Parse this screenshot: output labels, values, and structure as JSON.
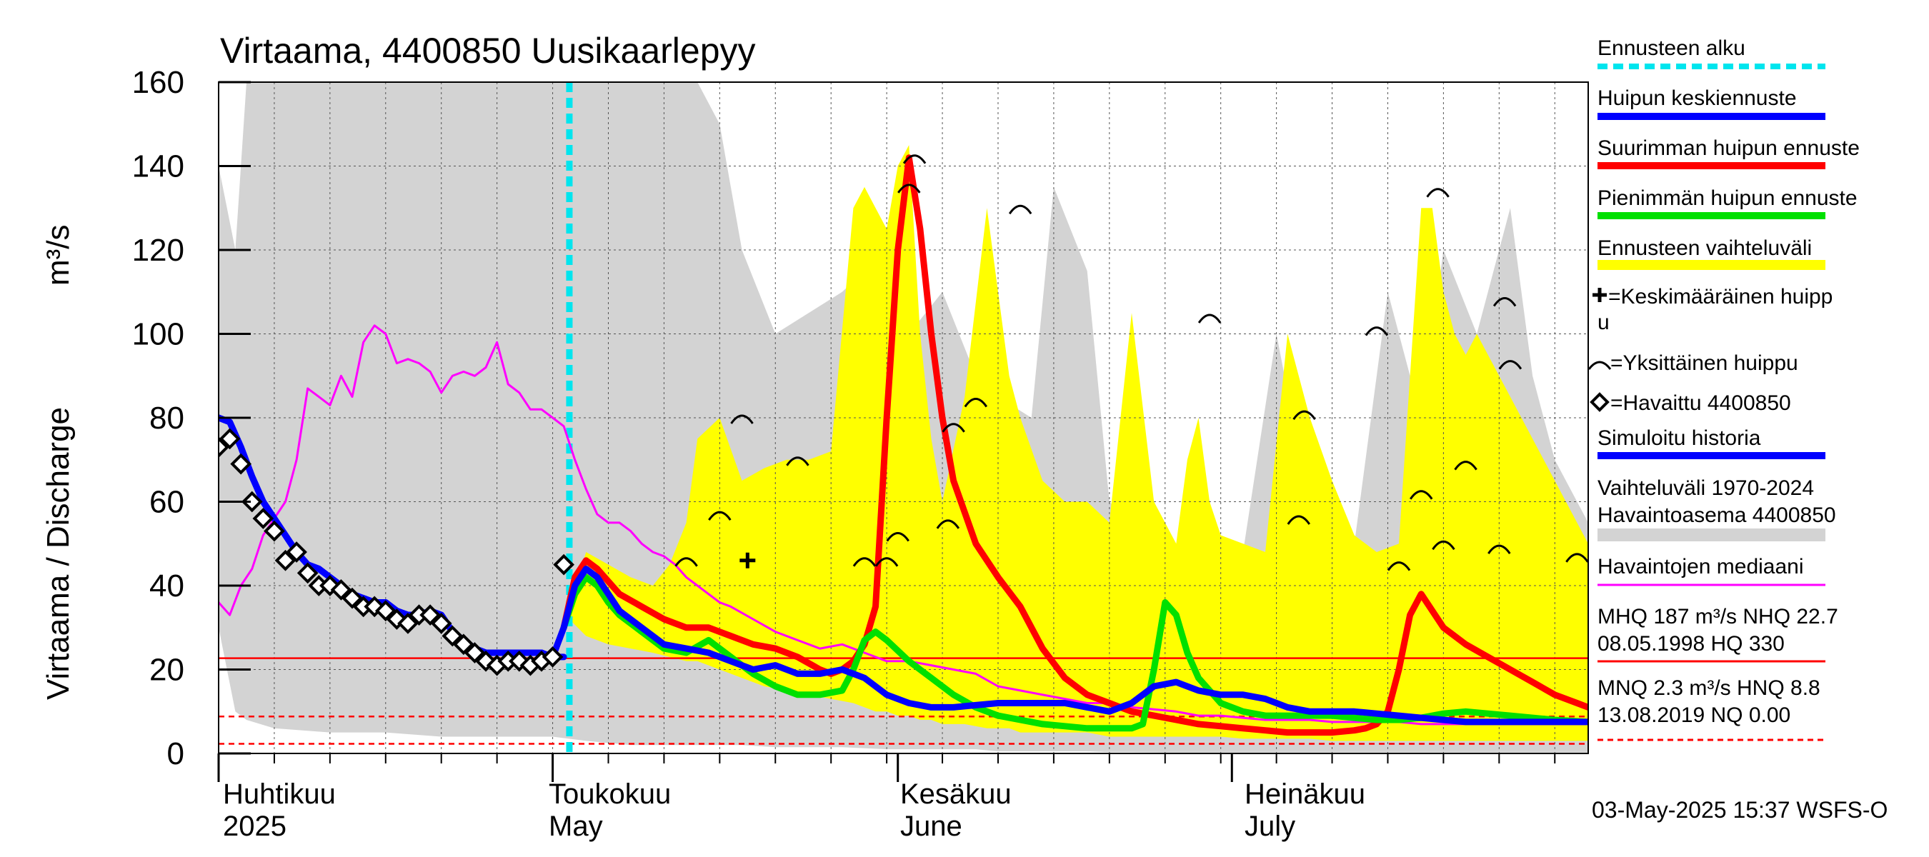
{
  "title": "Virtaama, 4400850 Uusikaarlepyy",
  "y_axis_label": "Virtaama / Discharge",
  "y_axis_unit": "m³/s",
  "timestamp": "03-May-2025 15:37 WSFS-O",
  "months": [
    {
      "fi": "Huhtikuu",
      "en": "2025"
    },
    {
      "fi": "Toukokuu",
      "en": "May"
    },
    {
      "fi": "Kesäkuu",
      "en": "June"
    },
    {
      "fi": "Heinäkuu",
      "en": "July"
    }
  ],
  "legend": {
    "forecast_start": "Ennusteen alku",
    "mean_peak": "Huipun keskiennuste",
    "max_peak": "Suurimman huipun ennuste",
    "min_peak": "Pienimmän huipun ennuste",
    "range": "Ennusteen vaihteluväli",
    "avg_peak_1": "=Keskimääräinen huipp",
    "avg_peak_2": "u",
    "single_peak": "=Yksittäinen huippu",
    "observed": "=Havaittu 4400850",
    "simulated": "Simuloitu historia",
    "hist_range_1": "Vaihteluväli 1970-2024",
    "hist_range_2": " Havaintoasema 4400850",
    "median": "Havaintojen mediaani",
    "mhq_1": "MHQ  187 m³/s NHQ 22.7",
    "mhq_2": "08.05.1998 HQ  330",
    "mnq_1": "MNQ  2.3 m³/s HNQ  8.8",
    "mnq_2": "13.08.2019 NQ 0.00"
  },
  "colors": {
    "forecast_start": "#00e5ee",
    "mean": "#0000ff",
    "max": "#ff0000",
    "min": "#00e000",
    "range": "#ffff00",
    "hist": "#d3d3d3",
    "median": "#ff00ff",
    "ref_line": "#ff0000"
  },
  "chart_data": {
    "type": "line",
    "title": "Virtaama, 4400850 Uusikaarlepyy",
    "xlabel": "",
    "ylabel": "Virtaama / Discharge m³/s",
    "x_unit": "days since 2025-03-31",
    "xlim": [
      0,
      123
    ],
    "ylim": [
      0,
      160
    ],
    "yticks": [
      0,
      20,
      40,
      60,
      80,
      100,
      120,
      140,
      160
    ],
    "forecast_start_x": 31.5,
    "reference_lines": [
      {
        "label": "NHQ 22.7",
        "y": 22.7,
        "style": "solid"
      },
      {
        "label": "HNQ 8.8",
        "y": 8.8,
        "style": "dashed"
      },
      {
        "label": "MNQ 2.3",
        "y": 2.3,
        "style": "dashed"
      }
    ],
    "history_range": {
      "name": "Vaihteluväli 1970-2024 Havaintoasema 4400850",
      "x": [
        0,
        1.5,
        2.5,
        5,
        10,
        15,
        20,
        25,
        30,
        33,
        37,
        40,
        43,
        45,
        47,
        50,
        53,
        56,
        60,
        62,
        65,
        68,
        70,
        73,
        75,
        78,
        80,
        82,
        85,
        88,
        92,
        95,
        99,
        102,
        105,
        108,
        110,
        113,
        116,
        118,
        120,
        123
      ],
      "upper": [
        140,
        120,
        160,
        160,
        160,
        160,
        160,
        160,
        160,
        160,
        160,
        160,
        160,
        150,
        120,
        100,
        105,
        110,
        120,
        100,
        110,
        90,
        85,
        80,
        135,
        115,
        60,
        55,
        48,
        45,
        48,
        100,
        45,
        50,
        110,
        80,
        120,
        100,
        130,
        90,
        70,
        55
      ],
      "lower": [
        30,
        10,
        8,
        6,
        5,
        5,
        4,
        4,
        4,
        3,
        2,
        2,
        2,
        2,
        2,
        1.5,
        1.5,
        1.5,
        1,
        1,
        1,
        1,
        0.5,
        0.5,
        0.5,
        0.5,
        0.3,
        0.3,
        0.2,
        0.2,
        0.2,
        0.2,
        0.2,
        0.2,
        0.2,
        0.2,
        0.2,
        0.2,
        0.2,
        0.2,
        0.2,
        0.2
      ]
    },
    "forecast_range": {
      "name": "Ennusteen vaihteluväli",
      "x": [
        31.5,
        33,
        35,
        37,
        39,
        40.5,
        42,
        43,
        45,
        47,
        49,
        51,
        53,
        55,
        57,
        58,
        59,
        60,
        61,
        62,
        63,
        64,
        65,
        67,
        69,
        71,
        72,
        74,
        76,
        78,
        80,
        82,
        84,
        86,
        87,
        88,
        89,
        90,
        92,
        94,
        96,
        98,
        100,
        102,
        104,
        106,
        108,
        109,
        110,
        111,
        112,
        113,
        115,
        117,
        119,
        121,
        123
      ],
      "upper": [
        35,
        48,
        45,
        42,
        40,
        45,
        55,
        75,
        80,
        65,
        68,
        70,
        70,
        72,
        130,
        135,
        130,
        125,
        140,
        145,
        100,
        75,
        60,
        85,
        130,
        90,
        80,
        65,
        60,
        60,
        55,
        105,
        60,
        50,
        70,
        80,
        60,
        52,
        50,
        48,
        100,
        80,
        65,
        52,
        48,
        50,
        130,
        130,
        110,
        100,
        95,
        100,
        90,
        80,
        70,
        60,
        50
      ],
      "lower": [
        32,
        28,
        26,
        25,
        24,
        23,
        22,
        22,
        20,
        18,
        16,
        15,
        14,
        13,
        12,
        11,
        10,
        10,
        9,
        9,
        8,
        8,
        7,
        7,
        6,
        6,
        5,
        5,
        5,
        5,
        4,
        4,
        4,
        4,
        4,
        4,
        4,
        4,
        3.5,
        3.5,
        3.5,
        3.5,
        3,
        3,
        3,
        3,
        3,
        3,
        3,
        3,
        3,
        3,
        3,
        3,
        3,
        3,
        3
      ]
    },
    "series": [
      {
        "name": "Havaintojen mediaani",
        "x": [
          0,
          1,
          2,
          3,
          4,
          5,
          6,
          7,
          8,
          9,
          10,
          11,
          12,
          13,
          14,
          15,
          16,
          17,
          18,
          19,
          20,
          21,
          22,
          23,
          24,
          25,
          26,
          27,
          28,
          29,
          30,
          31,
          32,
          33,
          34,
          35,
          36,
          37,
          38,
          39,
          40,
          41,
          42,
          43,
          44,
          45,
          46,
          48,
          50,
          52,
          54,
          56,
          58,
          60,
          62,
          64,
          66,
          68,
          70,
          72,
          74,
          76,
          78,
          80,
          82,
          84,
          86,
          88,
          90,
          92,
          94,
          96,
          98,
          100,
          102,
          104,
          106,
          108,
          110,
          112,
          114,
          116,
          118,
          120,
          123
        ],
        "values": [
          36,
          33,
          40,
          44,
          52,
          56,
          60,
          70,
          87,
          85,
          83,
          90,
          85,
          98,
          102,
          100,
          93,
          94,
          93,
          91,
          86,
          90,
          91,
          90,
          92,
          98,
          88,
          86,
          82,
          82,
          80,
          78,
          70,
          63,
          57,
          55,
          55,
          53,
          50,
          48,
          47,
          45,
          42,
          40,
          38,
          36,
          35,
          32,
          29,
          27,
          25,
          26,
          24,
          22,
          22,
          21,
          20,
          19,
          16,
          15,
          14,
          13,
          12,
          12,
          11,
          10.5,
          10,
          9,
          9,
          8.5,
          8,
          8,
          8,
          7.5,
          7.5,
          7.5,
          7.5,
          7,
          7,
          7,
          7,
          7,
          7,
          7,
          7
        ]
      },
      {
        "name": "Simuloitu historia",
        "x": [
          0,
          1,
          2,
          3,
          4,
          5,
          6,
          7,
          8,
          9,
          10,
          11,
          12,
          13,
          14,
          15,
          16,
          17,
          18,
          19,
          20,
          21,
          22,
          23,
          24,
          25,
          26,
          27,
          28,
          29,
          30,
          31
        ],
        "values": [
          80,
          79,
          73,
          66,
          60,
          56,
          52,
          48,
          45,
          44,
          42,
          40,
          38,
          37,
          36,
          36,
          34,
          33,
          33,
          34,
          33,
          29,
          27,
          25,
          24,
          24,
          24,
          24,
          24,
          24,
          23,
          23
        ]
      },
      {
        "name": "Suurimman huipun ennuste",
        "x": [
          31,
          32,
          33,
          34,
          35,
          36,
          38,
          40,
          42,
          44,
          46,
          48,
          50,
          52,
          54,
          55,
          56,
          57,
          58,
          59,
          60,
          61,
          62,
          63,
          64,
          65,
          66,
          68,
          70,
          72,
          74,
          76,
          78,
          80,
          82,
          84,
          86,
          88,
          90,
          92,
          94,
          96,
          98,
          100,
          102,
          103,
          104,
          105,
          106,
          107,
          108,
          110,
          112,
          114,
          116,
          118,
          120,
          122,
          123
        ],
        "values": [
          30,
          42,
          46,
          44,
          41,
          38,
          35,
          32,
          30,
          30,
          28,
          26,
          25,
          23,
          20,
          19,
          20,
          22,
          26,
          35,
          80,
          120,
          142,
          125,
          100,
          80,
          65,
          50,
          42,
          35,
          25,
          18,
          14,
          12,
          10,
          9,
          8,
          7,
          6.5,
          6,
          5.5,
          5,
          5,
          5,
          5.5,
          6,
          7,
          10,
          20,
          33,
          38,
          30,
          26,
          23,
          20,
          17,
          14,
          12,
          11
        ]
      },
      {
        "name": "Pienimmän huipun ennuste",
        "x": [
          31,
          32,
          33,
          34,
          35,
          36,
          38,
          40,
          42,
          44,
          46,
          48,
          50,
          52,
          54,
          56,
          57,
          58,
          59,
          60,
          62,
          64,
          66,
          68,
          70,
          72,
          74,
          76,
          78,
          80,
          82,
          83,
          84,
          85,
          86,
          87,
          88,
          90,
          92,
          94,
          96,
          98,
          100,
          102,
          104,
          106,
          108,
          110,
          112,
          114,
          116,
          118,
          120,
          123
        ],
        "values": [
          30,
          38,
          42,
          40,
          36,
          33,
          29,
          25,
          24,
          27,
          23,
          19,
          16,
          14,
          14,
          15,
          20,
          27,
          29,
          27,
          22,
          18,
          14,
          11,
          9,
          8,
          7,
          6.5,
          6,
          6,
          6,
          7,
          20,
          36,
          33,
          24,
          18,
          12,
          10,
          9,
          9,
          9,
          9,
          8.5,
          8,
          8,
          8.5,
          9.5,
          10,
          9.5,
          9,
          8.5,
          8,
          7.5
        ]
      },
      {
        "name": "Huipun keskiennuste",
        "x": [
          0,
          1,
          2,
          3,
          4,
          5,
          6,
          7,
          8,
          9,
          10,
          11,
          12,
          13,
          14,
          15,
          16,
          17,
          18,
          19,
          20,
          21,
          22,
          23,
          24,
          25,
          26,
          27,
          28,
          29,
          30,
          31,
          32,
          33,
          34,
          35,
          36,
          38,
          40,
          42,
          44,
          46,
          48,
          50,
          52,
          54,
          56,
          58,
          60,
          62,
          64,
          66,
          68,
          70,
          72,
          74,
          76,
          78,
          80,
          82,
          84,
          86,
          88,
          90,
          92,
          94,
          96,
          98,
          100,
          102,
          104,
          106,
          108,
          110,
          112,
          114,
          116,
          118,
          120,
          123
        ],
        "values": [
          80,
          79,
          73,
          66,
          60,
          56,
          52,
          48,
          45,
          44,
          42,
          40,
          38,
          37,
          36,
          36,
          34,
          33,
          33,
          34,
          33,
          29,
          27,
          25,
          24,
          24,
          24,
          24,
          24,
          24,
          23,
          30,
          40,
          44,
          42,
          38,
          34,
          30,
          26,
          25,
          24,
          22,
          20,
          21,
          19,
          19,
          20,
          18,
          14,
          12,
          11,
          11,
          11.5,
          12,
          12,
          12,
          12,
          11,
          10,
          12,
          16,
          17,
          15,
          14,
          14,
          13,
          11,
          10,
          10,
          10,
          9.5,
          9,
          8.5,
          8,
          7.5,
          7.5,
          7.5,
          7.5,
          7.5,
          7.5
        ]
      }
    ],
    "observed": {
      "name": "Havaittu 4400850",
      "x": [
        0,
        1,
        2,
        3,
        4,
        5,
        6,
        7,
        8,
        9,
        10,
        11,
        12,
        13,
        14,
        15,
        16,
        17,
        18,
        19,
        20,
        21,
        22,
        23,
        24,
        25,
        26,
        27,
        28,
        29,
        30,
        31
      ],
      "values": [
        73,
        75,
        69,
        60,
        56,
        53,
        46,
        48,
        43,
        40,
        40,
        39,
        37,
        35,
        35,
        34,
        32,
        31,
        33,
        33,
        31,
        28,
        26,
        24,
        22,
        21,
        22,
        22,
        21,
        22,
        23,
        45
      ]
    },
    "peak_markers": {
      "name": "Yksittäinen huippu",
      "x": [
        42,
        45,
        47,
        52,
        58,
        60,
        61,
        62,
        62.5,
        65.5,
        66,
        68,
        72,
        89,
        97,
        97.5,
        104,
        106,
        108,
        109.5,
        110,
        112,
        115,
        115.5,
        116,
        122
      ],
      "values": [
        46,
        57,
        80,
        70,
        46,
        46,
        52,
        135,
        142,
        55,
        78,
        84,
        130,
        104,
        56,
        81,
        101,
        45,
        62,
        134,
        50,
        69,
        49,
        108,
        93,
        47
      ]
    },
    "mean_peak": {
      "name": "Keskimääräinen huippu",
      "x": 47.5,
      "value": 46
    }
  }
}
